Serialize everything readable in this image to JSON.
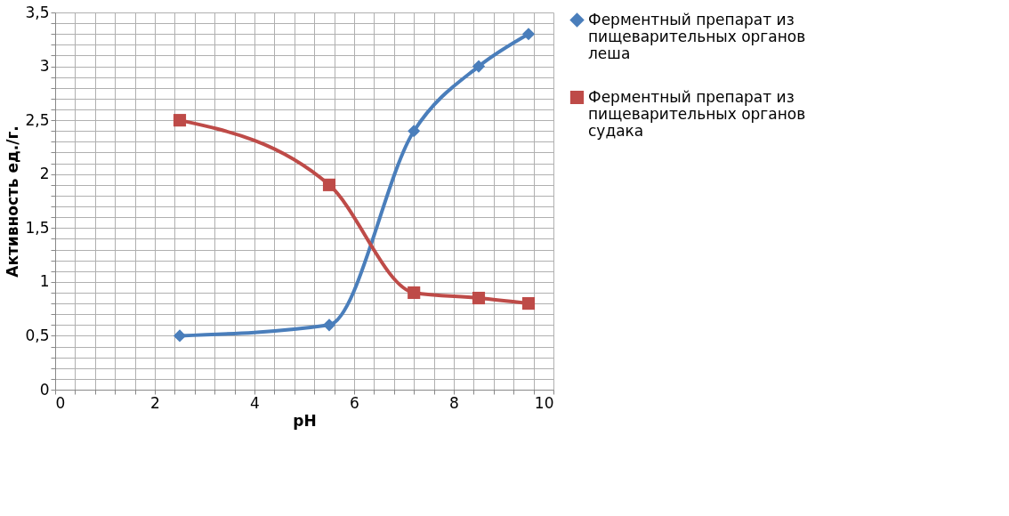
{
  "chart_data": {
    "type": "line",
    "xlabel": "pH",
    "ylabel": "Активность ед./г.",
    "x": [
      2.5,
      5.5,
      7.2,
      8.5,
      9.5
    ],
    "series": [
      {
        "name": "Ферментный препарат из пищеварительных органов леша",
        "color": "#4a7ebb",
        "marker": "diamond",
        "values": [
          0.5,
          0.6,
          2.4,
          3.0,
          3.3
        ]
      },
      {
        "name": "Ферментный препарат из пищеварительных органов судака",
        "color": "#be4b48",
        "marker": "square",
        "values": [
          2.5,
          1.9,
          0.9,
          0.85,
          0.8
        ]
      }
    ],
    "xlim": [
      0,
      10
    ],
    "xticks": [
      0,
      {
        "value": 0.4,
        "label": null
      },
      {
        "value": 0.8,
        "label": null
      },
      {
        "value": 1.2,
        "label": null
      },
      {
        "value": 1.6,
        "label": null
      },
      2,
      {
        "value": 2.4,
        "label": null
      },
      {
        "value": 2.8,
        "label": null
      },
      {
        "value": 3.2,
        "label": null
      },
      {
        "value": 3.6,
        "label": null
      },
      4,
      {
        "value": 4.4,
        "label": null
      },
      {
        "value": 4.8,
        "label": null
      },
      {
        "value": 5.2,
        "label": null
      },
      {
        "value": 5.6,
        "label": null
      },
      6,
      {
        "value": 6.4,
        "label": null
      },
      {
        "value": 6.8,
        "label": null
      },
      {
        "value": 7.2,
        "label": null
      },
      {
        "value": 7.6,
        "label": null
      },
      8,
      {
        "value": 8.4,
        "label": null
      },
      {
        "value": 8.8,
        "label": null
      },
      {
        "value": 9.2,
        "label": null
      },
      {
        "value": 9.6,
        "label": null
      },
      10
    ],
    "ylim": [
      0,
      3.5
    ],
    "yticks": [
      0,
      {
        "value": 0.1,
        "label": null
      },
      {
        "value": 0.2,
        "label": null
      },
      {
        "value": 0.3,
        "label": null
      },
      {
        "value": 0.4,
        "label": null
      },
      {
        "value": 0.5,
        "label": "0,5"
      },
      {
        "value": 0.6,
        "label": null
      },
      {
        "value": 0.7,
        "label": null
      },
      {
        "value": 0.8,
        "label": null
      },
      {
        "value": 0.9,
        "label": null
      },
      1,
      {
        "value": 1.1,
        "label": null
      },
      {
        "value": 1.2,
        "label": null
      },
      {
        "value": 1.3,
        "label": null
      },
      {
        "value": 1.4,
        "label": null
      },
      {
        "value": 1.5,
        "label": "1,5"
      },
      {
        "value": 1.6,
        "label": null
      },
      {
        "value": 1.7,
        "label": null
      },
      {
        "value": 1.8,
        "label": null
      },
      {
        "value": 1.9,
        "label": null
      },
      2,
      {
        "value": 2.1,
        "label": null
      },
      {
        "value": 2.2,
        "label": null
      },
      {
        "value": 2.3,
        "label": null
      },
      {
        "value": 2.4,
        "label": null
      },
      {
        "value": 2.5,
        "label": "2,5"
      },
      {
        "value": 2.6,
        "label": null
      },
      {
        "value": 2.7,
        "label": null
      },
      {
        "value": 2.8,
        "label": null
      },
      {
        "value": 2.9,
        "label": null
      },
      3,
      {
        "value": 3.1,
        "label": null
      },
      {
        "value": 3.2,
        "label": null
      },
      {
        "value": 3.3,
        "label": null
      },
      {
        "value": 3.4,
        "label": null
      },
      {
        "value": 3.5,
        "label": "3,5"
      }
    ],
    "grid": true,
    "legend": "right",
    "line_style": "solid"
  }
}
